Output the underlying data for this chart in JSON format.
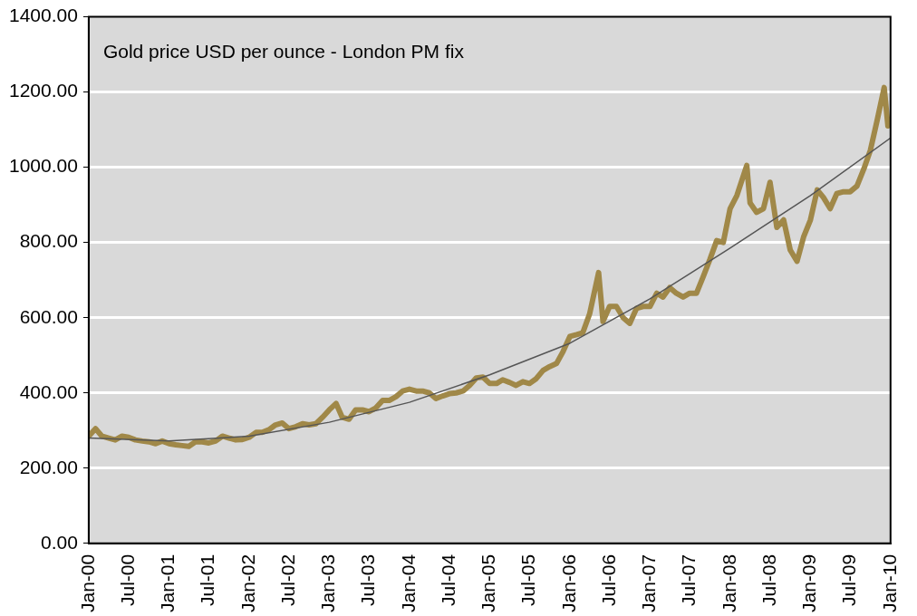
{
  "chart_data": {
    "type": "line",
    "title": "Gold price USD per ounce - London PM fix",
    "xlim": [
      "2000-01",
      "2010-01"
    ],
    "xticks": [
      {
        "value": "2000-01",
        "label": "Jan-00"
      },
      {
        "value": "2000-07",
        "label": "Jul-00"
      },
      {
        "value": "2001-01",
        "label": "Jan-01"
      },
      {
        "value": "2001-07",
        "label": "Jul-01"
      },
      {
        "value": "2002-01",
        "label": "Jan-02"
      },
      {
        "value": "2002-07",
        "label": "Jul-02"
      },
      {
        "value": "2003-01",
        "label": "Jan-03"
      },
      {
        "value": "2003-07",
        "label": "Jul-03"
      },
      {
        "value": "2004-01",
        "label": "Jan-04"
      },
      {
        "value": "2004-07",
        "label": "Jul-04"
      },
      {
        "value": "2005-01",
        "label": "Jan-05"
      },
      {
        "value": "2005-07",
        "label": "Jul-05"
      },
      {
        "value": "2006-01",
        "label": "Jan-06"
      },
      {
        "value": "2006-07",
        "label": "Jul-06"
      },
      {
        "value": "2007-01",
        "label": "Jan-07"
      },
      {
        "value": "2007-07",
        "label": "Jul-07"
      },
      {
        "value": "2008-01",
        "label": "Jan-08"
      },
      {
        "value": "2008-07",
        "label": "Jul-08"
      },
      {
        "value": "2009-01",
        "label": "Jan-09"
      },
      {
        "value": "2009-07",
        "label": "Jul-09"
      },
      {
        "value": "2010-01",
        "label": "Jan-10"
      }
    ],
    "ylim": [
      0,
      1400
    ],
    "yticks": [
      {
        "value": 0,
        "label": "0.00"
      },
      {
        "value": 200,
        "label": "200.00"
      },
      {
        "value": 400,
        "label": "400.00"
      },
      {
        "value": 600,
        "label": "600.00"
      },
      {
        "value": 800,
        "label": "800.00"
      },
      {
        "value": 1000,
        "label": "1000.00"
      },
      {
        "value": 1200,
        "label": "1200.00"
      },
      {
        "value": 1400,
        "label": "1400.00"
      }
    ],
    "grid": "y",
    "legend": false,
    "marker": "none",
    "line_style": "solid",
    "series": [
      {
        "type": "line",
        "color": "#a08848",
        "x": [
          "2000-01",
          "2000-02",
          "2000-03",
          "2000-04",
          "2000-05",
          "2000-06",
          "2000-07",
          "2000-08",
          "2000-09",
          "2000-10",
          "2000-11",
          "2000-12",
          "2001-01",
          "2001-02",
          "2001-03",
          "2001-04",
          "2001-05",
          "2001-06",
          "2001-07",
          "2001-08",
          "2001-09",
          "2001-10",
          "2001-11",
          "2001-12",
          "2002-01",
          "2002-02",
          "2002-03",
          "2002-04",
          "2002-05",
          "2002-06",
          "2002-07",
          "2002-08",
          "2002-09",
          "2002-10",
          "2002-11",
          "2002-12",
          "2003-01",
          "2003-02",
          "2003-03",
          "2003-04",
          "2003-05",
          "2003-06",
          "2003-07",
          "2003-08",
          "2003-09",
          "2003-10",
          "2003-11",
          "2003-12",
          "2004-01",
          "2004-02",
          "2004-03",
          "2004-04",
          "2004-05",
          "2004-06",
          "2004-07",
          "2004-08",
          "2004-09",
          "2004-10",
          "2004-11",
          "2004-12",
          "2005-01",
          "2005-02",
          "2005-03",
          "2005-04",
          "2005-05",
          "2005-06",
          "2005-07",
          "2005-08",
          "2005-09",
          "2005-10",
          "2005-11",
          "2005-12",
          "2006-01",
          "2006-02",
          "2006-03",
          "2006-04",
          "2006-05-12",
          "2006-06",
          "2006-07",
          "2006-08",
          "2006-09",
          "2006-10",
          "2006-11",
          "2006-12",
          "2007-01",
          "2007-02",
          "2007-03",
          "2007-04",
          "2007-05",
          "2007-06",
          "2007-07",
          "2007-08",
          "2007-09",
          "2007-10",
          "2007-11",
          "2007-12",
          "2008-01",
          "2008-02",
          "2008-03-17",
          "2008-04",
          "2008-05",
          "2008-06",
          "2008-07",
          "2008-08",
          "2008-09",
          "2008-10",
          "2008-11",
          "2008-12",
          "2009-01",
          "2009-02",
          "2009-03",
          "2009-04",
          "2009-05",
          "2009-06",
          "2009-07",
          "2009-08",
          "2009-09",
          "2009-10",
          "2009-11",
          "2009-12-03",
          "2009-12-20",
          "2010-01"
        ],
        "values": [
          285,
          305,
          285,
          280,
          275,
          285,
          282,
          275,
          272,
          270,
          265,
          272,
          265,
          262,
          260,
          258,
          270,
          270,
          267,
          272,
          285,
          280,
          275,
          276,
          282,
          295,
          295,
          302,
          315,
          320,
          305,
          310,
          318,
          315,
          318,
          335,
          355,
          372,
          335,
          330,
          355,
          355,
          350,
          360,
          380,
          380,
          390,
          405,
          410,
          405,
          405,
          400,
          385,
          392,
          398,
          400,
          405,
          420,
          440,
          442,
          425,
          425,
          435,
          428,
          420,
          430,
          425,
          438,
          460,
          470,
          478,
          510,
          550,
          555,
          560,
          610,
          720,
          590,
          630,
          630,
          600,
          585,
          625,
          630,
          630,
          665,
          655,
          680,
          665,
          655,
          665,
          665,
          710,
          755,
          805,
          800,
          890,
          925,
          1005,
          905,
          880,
          890,
          960,
          840,
          860,
          780,
          750,
          815,
          860,
          940,
          920,
          890,
          930,
          935,
          935,
          950,
          995,
          1045,
          1125,
          1212,
          1110,
          1120
        ]
      },
      {
        "type": "line",
        "color": "#555555",
        "x": [
          "2000-01",
          "2001-01",
          "2002-01",
          "2003-01",
          "2004-01",
          "2005-01",
          "2006-01",
          "2007-01",
          "2008-01",
          "2009-01",
          "2010-01"
        ],
        "values": [
          280,
          272,
          285,
          322,
          375,
          448,
          532,
          650,
          785,
          925,
          1078
        ]
      }
    ]
  }
}
